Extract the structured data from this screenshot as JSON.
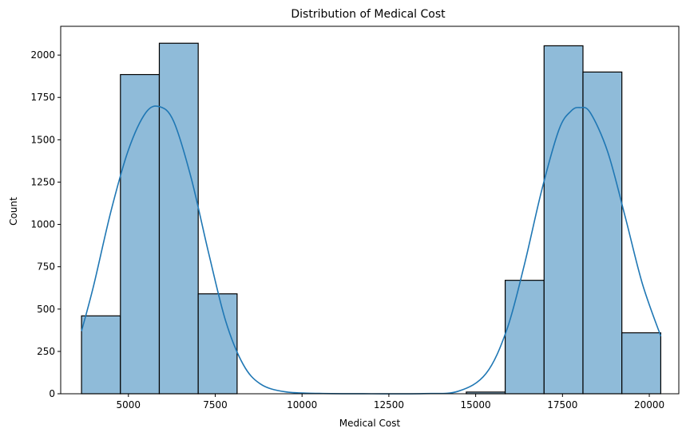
{
  "chart_data": {
    "type": "histogram",
    "title": "Distribution of Medical Cost",
    "xlabel": "Medical Cost",
    "ylabel": "Count",
    "xlim": [
      3050,
      20850
    ],
    "ylim": [
      0,
      2170
    ],
    "xticks": [
      5000,
      7500,
      10000,
      12500,
      15000,
      17500,
      20000
    ],
    "yticks": [
      0,
      250,
      500,
      750,
      1000,
      1250,
      1500,
      1750,
      2000
    ],
    "bins": [
      {
        "x0": 3650,
        "x1": 4770,
        "count": 460
      },
      {
        "x0": 4770,
        "x1": 5890,
        "count": 1885
      },
      {
        "x0": 5890,
        "x1": 7010,
        "count": 2070
      },
      {
        "x0": 7010,
        "x1": 8130,
        "count": 590
      },
      {
        "x0": 14730,
        "x1": 15850,
        "count": 10
      },
      {
        "x0": 15850,
        "x1": 16970,
        "count": 670
      },
      {
        "x0": 16970,
        "x1": 18090,
        "count": 2055
      },
      {
        "x0": 18090,
        "x1": 19210,
        "count": 1900
      },
      {
        "x0": 19210,
        "x1": 20330,
        "count": 360
      }
    ],
    "kde": {
      "x": [
        3650,
        4000,
        4500,
        5000,
        5500,
        5900,
        6300,
        6800,
        7300,
        7800,
        8300,
        8800,
        9500,
        10500,
        12000,
        13500,
        14500,
        15300,
        15900,
        16400,
        16900,
        17400,
        17750,
        18000,
        18300,
        18800,
        19300,
        19800,
        20330
      ],
      "y": [
        370,
        640,
        1080,
        1440,
        1660,
        1695,
        1610,
        1280,
        840,
        430,
        175,
        58,
        12,
        2,
        0,
        1,
        15,
        120,
        380,
        760,
        1200,
        1560,
        1670,
        1690,
        1660,
        1430,
        1050,
        650,
        340
      ]
    },
    "bar_color": "#8fbbd9",
    "bar_edge_color": "#000000",
    "line_color": "#1f77b4",
    "grid": false
  }
}
